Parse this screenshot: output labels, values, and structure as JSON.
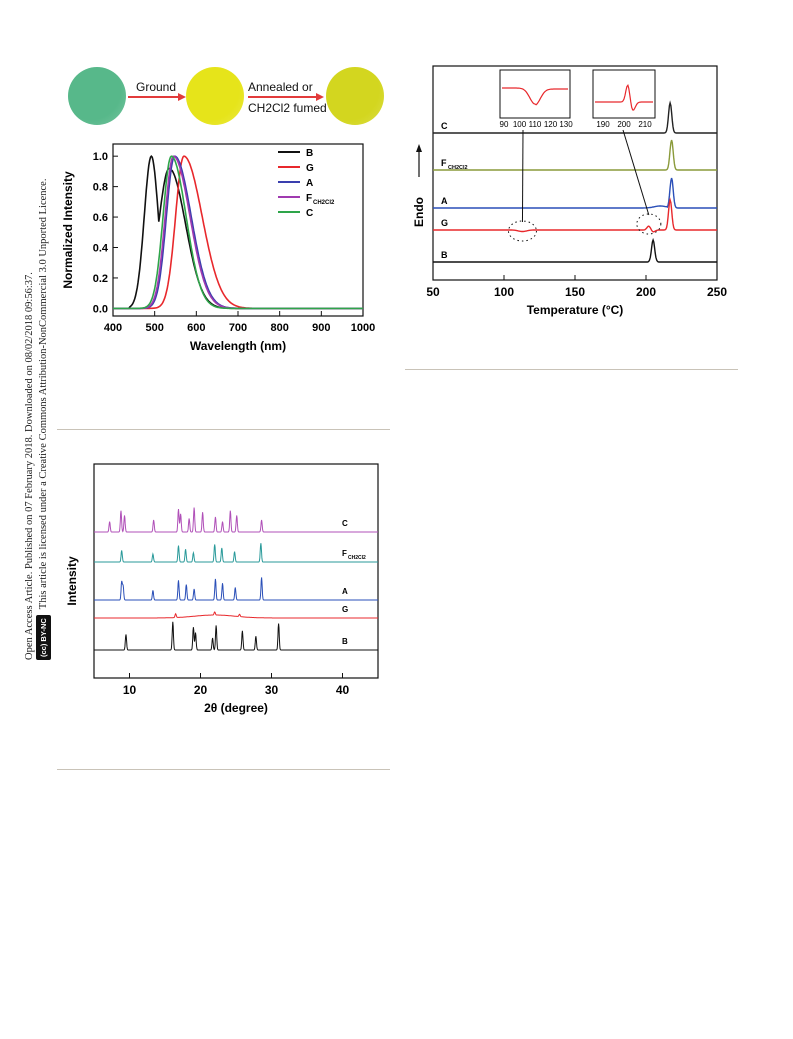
{
  "sidebar": {
    "line1": "Open Access Article. Published on 07 February 2018. Downloaded on 08/02/2018 09:56:37.",
    "line2": "This article is licensed under a Creative Commons Attribution-NonCommercial 3.0 Unported Licence.",
    "badge": "BY-NC",
    "cc": "(cc)"
  },
  "photo_strip": {
    "arrow1_label": "Ground",
    "arrow2_label_line1": "Annealed or",
    "arrow2_label_line2": "CH2Cl2 fumed",
    "disc_colors": [
      "#57b88a",
      "#e6e41a",
      "#d3d61f"
    ]
  },
  "pl_chart": {
    "chart_data": {
      "type": "line",
      "xlabel": "Wavelength (nm)",
      "ylabel": "Normalized Intensity",
      "xlim": [
        400,
        1000
      ],
      "ylim": [
        -0.05,
        1.08
      ],
      "xticks": [
        "400",
        "500",
        "600",
        "700",
        "800",
        "900",
        "1000"
      ],
      "yticks": [
        "0.0",
        "0.2",
        "0.4",
        "0.6",
        "0.8",
        "1.0"
      ],
      "legend_position": "top-right",
      "series": [
        {
          "name": "B",
          "color": "#111111",
          "peak": 495,
          "shoulder": 540
        },
        {
          "name": "G",
          "color": "#e8282c",
          "peak": 570
        },
        {
          "name": "A",
          "color": "#3a3fae",
          "peak": 548
        },
        {
          "name": "F",
          "sub": "CH2Cl2",
          "color": "#a03ab0",
          "peak": 545
        },
        {
          "name": "C",
          "color": "#2ea54a",
          "peak": 540
        }
      ]
    }
  },
  "dsc_chart": {
    "chart_data": {
      "type": "line",
      "xlabel": "Temperature (°C)",
      "ylabel": "Endo",
      "xlim": [
        50,
        250
      ],
      "xticks": [
        "50",
        "100",
        "150",
        "200",
        "250"
      ],
      "traces": [
        {
          "name": "C",
          "color": "#222222",
          "peak_temp": 217
        },
        {
          "name": "F",
          "sub": "CH2Cl2",
          "color": "#8a9a3a",
          "peak_temp": 218
        },
        {
          "name": "A",
          "color": "#2a4fb8",
          "peak_temp": 218
        },
        {
          "name": "G",
          "color": "#e8282c",
          "peak_temp": 217,
          "exotherm_temp": 113,
          "small_event": 202
        },
        {
          "name": "B",
          "color": "#111111",
          "peak_temp": 205
        }
      ],
      "inset1": {
        "xticks": [
          "90",
          "100",
          "110",
          "120",
          "130"
        ]
      },
      "inset2": {
        "xticks": [
          "190",
          "200",
          "210"
        ]
      }
    }
  },
  "xrd_chart": {
    "chart_data": {
      "type": "line",
      "xlabel": "2θ (degree)",
      "ylabel": "Intensity",
      "xlim": [
        5,
        45
      ],
      "xticks": [
        "10",
        "20",
        "30",
        "40"
      ],
      "series": [
        {
          "name": "C",
          "color": "#b050b8",
          "peaks": [
            7.2,
            8.8,
            9.3,
            13.4,
            16.9,
            17.2,
            18.4,
            19.1,
            20.3,
            22.1,
            23.1,
            24.2,
            25.1,
            28.6
          ]
        },
        {
          "name": "F",
          "sub": "CH2Cl2",
          "color": "#2a9a9a",
          "peaks": [
            8.9,
            13.3,
            16.9,
            17.9,
            19.0,
            22.0,
            23.0,
            24.8,
            28.5
          ]
        },
        {
          "name": "A",
          "color": "#2a4fb8",
          "peaks": [
            8.9,
            9.1,
            13.3,
            16.9,
            18.0,
            19.1,
            22.1,
            23.1,
            24.9,
            28.6
          ]
        },
        {
          "name": "G",
          "color": "#e8282c",
          "peaks": [
            16.5,
            22.0,
            25.5
          ]
        },
        {
          "name": "B",
          "color": "#111111",
          "peaks": [
            9.5,
            16.1,
            19.0,
            19.3,
            21.7,
            22.2,
            25.9,
            27.8,
            31.0
          ]
        }
      ]
    }
  }
}
